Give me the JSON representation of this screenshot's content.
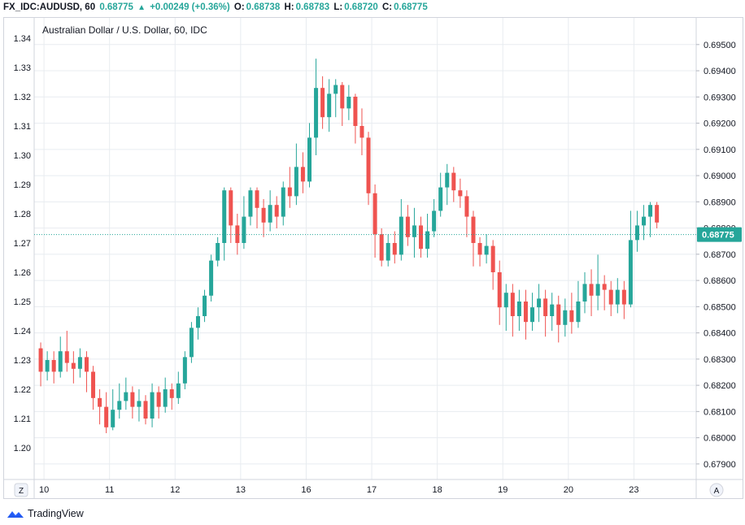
{
  "header": {
    "symbol": "FX_IDC:AUDUSD, 60",
    "last": "0.68775",
    "change": "+0.00249 (+0.36%)",
    "o_label": "O:",
    "o_value": "0.68738",
    "h_label": "H:",
    "h_value": "0.68783",
    "l_label": "L:",
    "l_value": "0.68720",
    "c_label": "C:",
    "c_value": "0.68775"
  },
  "footer": {
    "brand": "TradingView"
  },
  "corner_buttons": {
    "left": "Z",
    "right": "A"
  },
  "colors": {
    "up": "#26a69a",
    "down": "#ef5350",
    "grid": "#e8ecf0",
    "price_line": "#26a69a"
  },
  "chart_data": {
    "type": "candlestick",
    "title": "Australian Dollar / U.S. Dollar, 60, IDC",
    "left_axis": {
      "min": 1.19,
      "max": 1.345,
      "ticks": [
        "1.20",
        "1.21",
        "1.22",
        "1.23",
        "1.24",
        "1.25",
        "1.26",
        "1.27",
        "1.28",
        "1.29",
        "1.30",
        "1.31",
        "1.32",
        "1.33",
        "1.34"
      ]
    },
    "right_axis": {
      "min": 0.6785,
      "max": 0.6958,
      "ticks": [
        "0.67900",
        "0.68000",
        "0.68100",
        "0.68200",
        "0.68300",
        "0.68400",
        "0.68500",
        "0.68600",
        "0.68700",
        "0.68800",
        "0.68900",
        "0.69000",
        "0.69100",
        "0.69200",
        "0.69300",
        "0.69400",
        "0.69500"
      ]
    },
    "last_price": "0.68775",
    "last_price_value": 0.68775,
    "x_labels": [
      {
        "label": "10",
        "pos": 0.5
      },
      {
        "label": "11",
        "pos": 10.5
      },
      {
        "label": "12",
        "pos": 20.5
      },
      {
        "label": "13",
        "pos": 30.5
      },
      {
        "label": "16",
        "pos": 40.5
      },
      {
        "label": "17",
        "pos": 50.5
      },
      {
        "label": "18",
        "pos": 60.5
      },
      {
        "label": "19",
        "pos": 70.5
      },
      {
        "label": "20",
        "pos": 80.5
      },
      {
        "label": "23",
        "pos": 90.5
      }
    ],
    "x_range": [
      -1,
      100
    ],
    "grid": true,
    "candles": [
      [
        1.234,
        1.226,
        1.236,
        1.221
      ],
      [
        1.226,
        1.23,
        1.233,
        1.223
      ],
      [
        1.23,
        1.226,
        1.233,
        1.222
      ],
      [
        1.226,
        1.233,
        1.238,
        1.224
      ],
      [
        1.233,
        1.229,
        1.24,
        1.226
      ],
      [
        1.229,
        1.227,
        1.233,
        1.222
      ],
      [
        1.227,
        1.231,
        1.234,
        1.224
      ],
      [
        1.231,
        1.226,
        1.233,
        1.219
      ],
      [
        1.226,
        1.217,
        1.228,
        1.213
      ],
      [
        1.217,
        1.214,
        1.22,
        1.208
      ],
      [
        1.214,
        1.207,
        1.219,
        1.205
      ],
      [
        1.207,
        1.213,
        1.22,
        1.206
      ],
      [
        1.213,
        1.216,
        1.222,
        1.21
      ],
      [
        1.216,
        1.219,
        1.224,
        1.213
      ],
      [
        1.219,
        1.214,
        1.221,
        1.21
      ],
      [
        1.214,
        1.216,
        1.22,
        1.209
      ],
      [
        1.216,
        1.21,
        1.218,
        1.208
      ],
      [
        1.21,
        1.219,
        1.222,
        1.207
      ],
      [
        1.219,
        1.214,
        1.221,
        1.21
      ],
      [
        1.214,
        1.22,
        1.224,
        1.212
      ],
      [
        1.22,
        1.217,
        1.222,
        1.213
      ],
      [
        1.217,
        1.222,
        1.226,
        1.215
      ],
      [
        1.222,
        1.231,
        1.233,
        1.22
      ],
      [
        1.231,
        1.241,
        1.243,
        1.229
      ],
      [
        1.241,
        1.245,
        1.248,
        1.237
      ],
      [
        1.245,
        1.252,
        1.254,
        1.243
      ],
      [
        1.252,
        1.264,
        1.266,
        1.25
      ],
      [
        1.264,
        1.27,
        1.272,
        1.262
      ],
      [
        1.27,
        1.288,
        1.289,
        1.264
      ],
      [
        1.288,
        1.276,
        1.289,
        1.27
      ],
      [
        1.276,
        1.27,
        1.28,
        1.266
      ],
      [
        1.27,
        1.279,
        1.286,
        1.268
      ],
      [
        1.279,
        1.288,
        1.289,
        1.276
      ],
      [
        1.288,
        1.282,
        1.289,
        1.275
      ],
      [
        1.282,
        1.277,
        1.285,
        1.272
      ],
      [
        1.277,
        1.283,
        1.288,
        1.274
      ],
      [
        1.283,
        1.279,
        1.286,
        1.275
      ],
      [
        1.279,
        1.289,
        1.291,
        1.276
      ],
      [
        1.289,
        1.286,
        1.296,
        1.282
      ],
      [
        1.286,
        1.296,
        1.304,
        1.283
      ],
      [
        1.296,
        1.291,
        1.301,
        1.287
      ],
      [
        1.291,
        1.306,
        1.311,
        1.289
      ],
      [
        1.306,
        1.323,
        1.333,
        1.3
      ],
      [
        1.323,
        1.313,
        1.327,
        1.309
      ],
      [
        1.313,
        1.321,
        1.326,
        1.308
      ],
      [
        1.321,
        1.324,
        1.326,
        1.313
      ],
      [
        1.324,
        1.316,
        1.325,
        1.31
      ],
      [
        1.316,
        1.32,
        1.324,
        1.312
      ],
      [
        1.32,
        1.31,
        1.321,
        1.304
      ],
      [
        1.31,
        1.306,
        1.316,
        1.3
      ],
      [
        1.306,
        1.287,
        1.308,
        1.283
      ],
      [
        1.287,
        1.273,
        1.29,
        1.265
      ],
      [
        1.273,
        1.264,
        1.275,
        1.262
      ],
      [
        1.264,
        1.27,
        1.273,
        1.262
      ],
      [
        1.27,
        1.266,
        1.274,
        1.263
      ],
      [
        1.266,
        1.279,
        1.285,
        1.264
      ],
      [
        1.279,
        1.272,
        1.283,
        1.269
      ],
      [
        1.272,
        1.276,
        1.282,
        1.265
      ],
      [
        1.276,
        1.268,
        1.279,
        1.265
      ],
      [
        1.268,
        1.274,
        1.28,
        1.265
      ],
      [
        1.274,
        1.281,
        1.285,
        1.272
      ],
      [
        1.281,
        1.289,
        1.294,
        1.279
      ],
      [
        1.289,
        1.294,
        1.297,
        1.283
      ],
      [
        1.294,
        1.288,
        1.296,
        1.284
      ],
      [
        1.288,
        1.286,
        1.292,
        1.282
      ],
      [
        1.286,
        1.279,
        1.288,
        1.272
      ],
      [
        1.279,
        1.27,
        1.281,
        1.262
      ],
      [
        1.27,
        1.266,
        1.272,
        1.262
      ],
      [
        1.266,
        1.269,
        1.273,
        1.263
      ],
      [
        1.269,
        1.26,
        1.271,
        1.254
      ],
      [
        1.26,
        1.248,
        1.264,
        1.242
      ],
      [
        1.248,
        1.253,
        1.256,
        1.24
      ],
      [
        1.253,
        1.245,
        1.256,
        1.238
      ],
      [
        1.245,
        1.25,
        1.254,
        1.24
      ],
      [
        1.25,
        1.243,
        1.254,
        1.237
      ],
      [
        1.243,
        1.248,
        1.253,
        1.24
      ],
      [
        1.248,
        1.251,
        1.256,
        1.243
      ],
      [
        1.251,
        1.245,
        1.254,
        1.238
      ],
      [
        1.245,
        1.249,
        1.253,
        1.24
      ],
      [
        1.249,
        1.242,
        1.252,
        1.236
      ],
      [
        1.242,
        1.247,
        1.251,
        1.238
      ],
      [
        1.247,
        1.243,
        1.253,
        1.239
      ],
      [
        1.243,
        1.25,
        1.257,
        1.241
      ],
      [
        1.25,
        1.256,
        1.26,
        1.246
      ],
      [
        1.256,
        1.252,
        1.261,
        1.245
      ],
      [
        1.252,
        1.256,
        1.266,
        1.247
      ],
      [
        1.256,
        1.254,
        1.259,
        1.247
      ],
      [
        1.254,
        1.249,
        1.257,
        1.245
      ],
      [
        1.249,
        1.254,
        1.258,
        1.246
      ],
      [
        1.254,
        1.249,
        1.257,
        1.244
      ],
      [
        1.249,
        1.271,
        1.281,
        1.248
      ],
      [
        1.271,
        1.276,
        1.281,
        1.267
      ],
      [
        1.276,
        1.279,
        1.283,
        1.271
      ],
      [
        1.279,
        1.283,
        1.284,
        1.272
      ],
      [
        1.283,
        1.277,
        1.284,
        1.275
      ]
    ]
  }
}
